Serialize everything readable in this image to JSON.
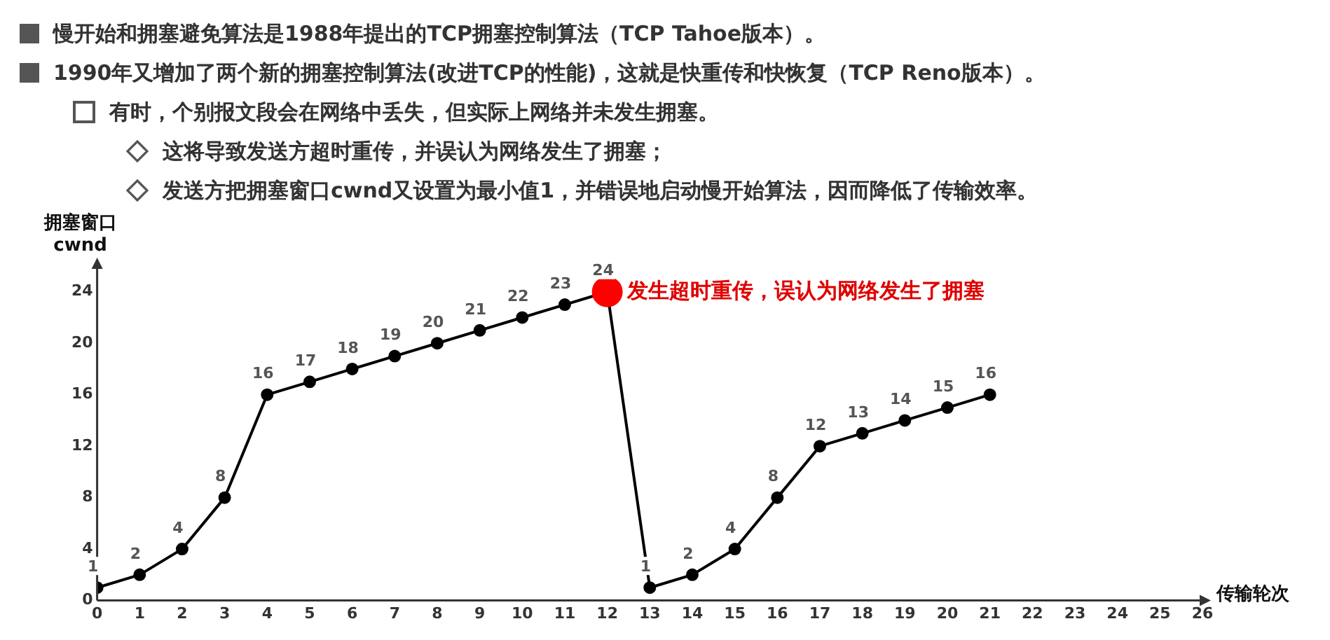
{
  "chart_data": {
    "type": "line",
    "xlabel": "传输轮次",
    "ylabel": "拥塞窗口\ncwnd",
    "annotations": [
      "慢开始和拥塞避免算法是1988年提出的TCP拥塞控制算法（TCP Tahoe版本）。",
      "1990年又增加了两个新的拥塞控制算法(改进TCP的性能)，这就是快重传和快恢复（TCP Reno版本）。",
      "有时，个别报文段会在网络中丢失，但实际上网络并未发生拥塞。",
      "这将导致发送方超时重传，并误认为网络发生了拥塞；",
      "发送方把拥塞窗口cwnd又设置为最小值1，并错误地启动慢开始算法，因而降低了传输效率。",
      {
        "text": "发生超时重传，误认为网络发生了拥塞",
        "x": 12,
        "y": 24
      }
    ],
    "series": [
      {
        "color": "#000000",
        "x": [
          0,
          1,
          2,
          3,
          4,
          5,
          6,
          7,
          8,
          9,
          10,
          11,
          12,
          13,
          14,
          15,
          16,
          17,
          18,
          19,
          20,
          21
        ],
        "values": [
          1,
          2,
          4,
          8,
          16,
          17,
          18,
          19,
          20,
          21,
          22,
          23,
          24,
          1,
          2,
          4,
          8,
          12,
          13,
          14,
          15,
          16
        ],
        "colors": [
          "#000000",
          "#000000",
          "#000000",
          "#000000",
          "#000000",
          "#000000",
          "#000000",
          "#000000",
          "#000000",
          "#000000",
          "#000000",
          "#000000",
          "#ff0000",
          "#000000",
          "#000000",
          "#000000",
          "#000000",
          "#000000",
          "#000000",
          "#000000",
          "#000000",
          "#000000"
        ]
      }
    ],
    "xlim": [
      0,
      26
    ],
    "xticks": [
      0,
      1,
      2,
      3,
      4,
      5,
      6,
      7,
      8,
      9,
      10,
      11,
      12,
      13,
      14,
      15,
      16,
      17,
      18,
      19,
      20,
      21,
      22,
      23,
      24,
      25,
      26
    ],
    "ylim": [
      0,
      26
    ],
    "yticks": [
      0,
      4,
      8,
      12,
      16,
      20,
      24
    ],
    "grid": false,
    "legend": false,
    "marker": "circle",
    "line_style": "solid",
    "data_labels": true
  }
}
